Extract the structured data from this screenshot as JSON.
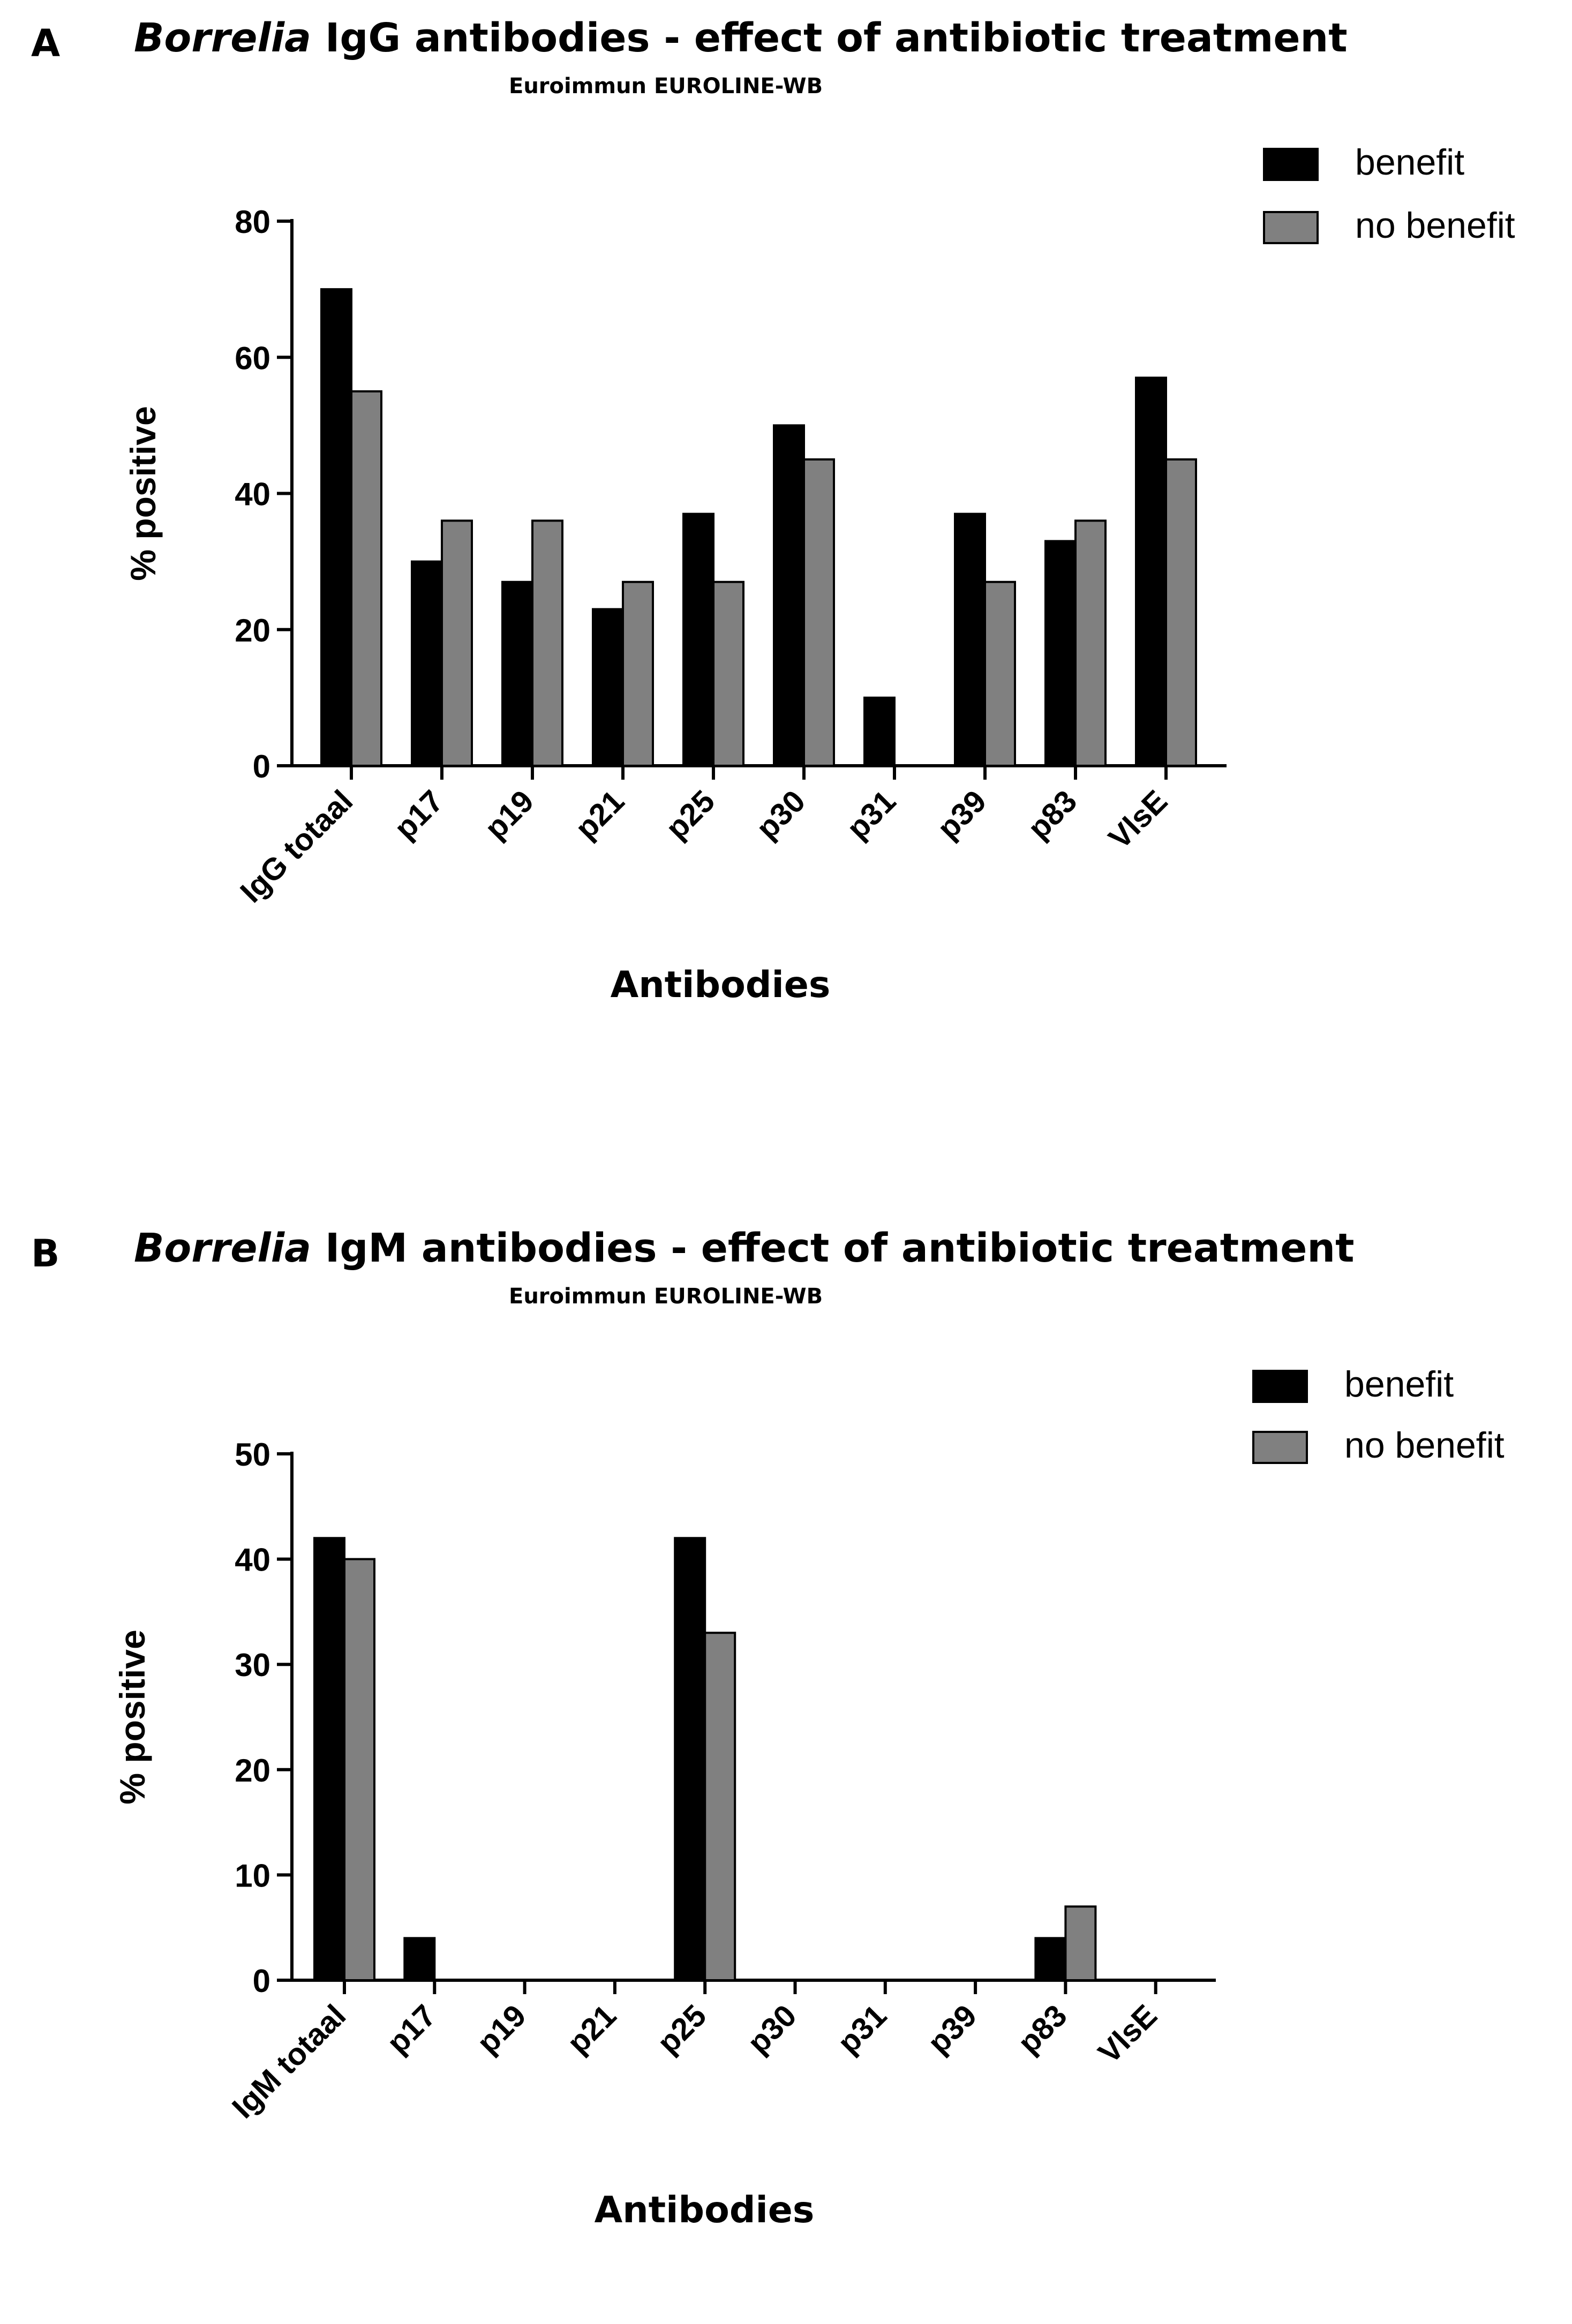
{
  "colors": {
    "benefit": "#000000",
    "no_benefit": "#808080",
    "axis": "#000000"
  },
  "chart_data": [
    {
      "panel": "A",
      "type": "bar",
      "title_italic": "Borrelia",
      "title_rest": " IgG antibodies - effect of antibiotic treatment",
      "subtitle": "Euroimmun EUROLINE-WB",
      "categories": [
        "IgG totaal",
        "p17",
        "p19",
        "p21",
        "p25",
        "p30",
        "p31",
        "p39",
        "p83",
        "VlsE"
      ],
      "series": [
        {
          "name": "benefit",
          "values": [
            70,
            30,
            27,
            23,
            37,
            50,
            10,
            37,
            33,
            57
          ]
        },
        {
          "name": "no benefit",
          "values": [
            55,
            36,
            36,
            27,
            27,
            45,
            0,
            27,
            36,
            45
          ]
        }
      ],
      "xlabel": "Antibodies",
      "ylabel": "% positive",
      "ylim": [
        0,
        80
      ],
      "yticks": [
        0,
        20,
        40,
        60,
        80
      ],
      "legend_position": "top-right",
      "grid": false
    },
    {
      "panel": "B",
      "type": "bar",
      "title_italic": "Borrelia",
      "title_rest": " IgM antibodies - effect of antibiotic treatment",
      "subtitle": "Euroimmun EUROLINE-WB",
      "categories": [
        "IgM totaal",
        "p17",
        "p19",
        "p21",
        "p25",
        "p30",
        "p31",
        "p39",
        "p83",
        "VlsE"
      ],
      "series": [
        {
          "name": "benefit",
          "values": [
            42,
            4,
            0,
            0,
            42,
            0,
            0,
            0,
            4,
            0
          ]
        },
        {
          "name": "no benefit",
          "values": [
            40,
            0,
            0,
            0,
            33,
            0,
            0,
            0,
            7,
            0
          ]
        }
      ],
      "xlabel": "Antibodies",
      "ylabel": "% positive",
      "ylim": [
        0,
        50
      ],
      "yticks": [
        0,
        10,
        20,
        30,
        40,
        50
      ],
      "legend_position": "top-right",
      "grid": false
    }
  ]
}
